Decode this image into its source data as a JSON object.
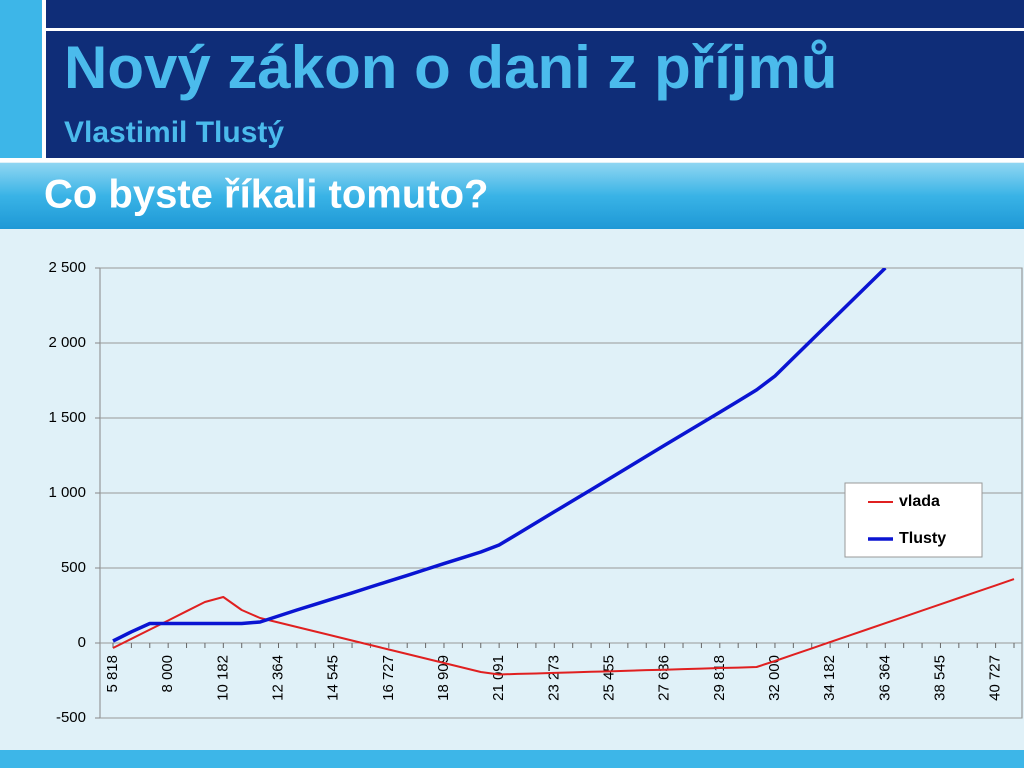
{
  "header": {
    "title": "Nový zákon o dani z příjmů",
    "subtitle": "Vlastimil Tlustý"
  },
  "section": {
    "heading": "Co byste říkali tomuto?"
  },
  "chart_data": {
    "type": "line",
    "categories": [
      "5 818",
      null,
      null,
      "8 000",
      null,
      null,
      "10 182",
      null,
      null,
      "12 364",
      null,
      null,
      "14 545",
      null,
      null,
      "16 727",
      null,
      null,
      "18 909",
      null,
      null,
      "21 091",
      null,
      null,
      "23 273",
      null,
      null,
      "25 455",
      null,
      null,
      "27 636",
      null,
      null,
      "29 818",
      null,
      null,
      "32 000",
      null,
      null,
      "34 182",
      null,
      null,
      "36 364",
      null,
      null,
      "38 545",
      null,
      null,
      "40 727",
      null
    ],
    "series": [
      {
        "name": "vlada",
        "color": "#e02020",
        "values": [
          -33,
          28,
          89,
          150,
          212,
          273,
          307,
          220,
          167,
          137,
          107,
          77,
          47,
          17,
          -13,
          -43,
          -73,
          -103,
          -133,
          -163,
          -193,
          -210,
          -206,
          -203,
          -199,
          -196,
          -192,
          -189,
          -185,
          -181,
          -178,
          -174,
          -171,
          -167,
          -164,
          -160,
          -120,
          -78,
          -36,
          6,
          48,
          90,
          132,
          174,
          216,
          258,
          300,
          342,
          384,
          426
        ]
      },
      {
        "name": "Tlusty",
        "color": "#0a14d2",
        "values": [
          13,
          75,
          130,
          130,
          130,
          130,
          130,
          130,
          140,
          180,
          220,
          258,
          296,
          334,
          373,
          412,
          451,
          490,
          529,
          568,
          607,
          653,
          727,
          801,
          875,
          948,
          1022,
          1096,
          1170,
          1244,
          1318,
          1392,
          1465,
          1539,
          1613,
          1687,
          1780,
          1900,
          2020,
          2140,
          2260,
          2380,
          2500,
          null,
          null,
          null,
          null,
          null,
          null,
          null
        ]
      }
    ],
    "ylim": [
      -500,
      2500
    ],
    "yticks": [
      -500,
      0,
      500,
      {
        "value": 1000,
        "label": "1 000"
      },
      {
        "value": 1500,
        "label": "1 500"
      },
      {
        "value": 2000,
        "label": "2 000"
      },
      {
        "value": 2500,
        "label": "2 500"
      }
    ],
    "grid": true,
    "legend": "right"
  }
}
